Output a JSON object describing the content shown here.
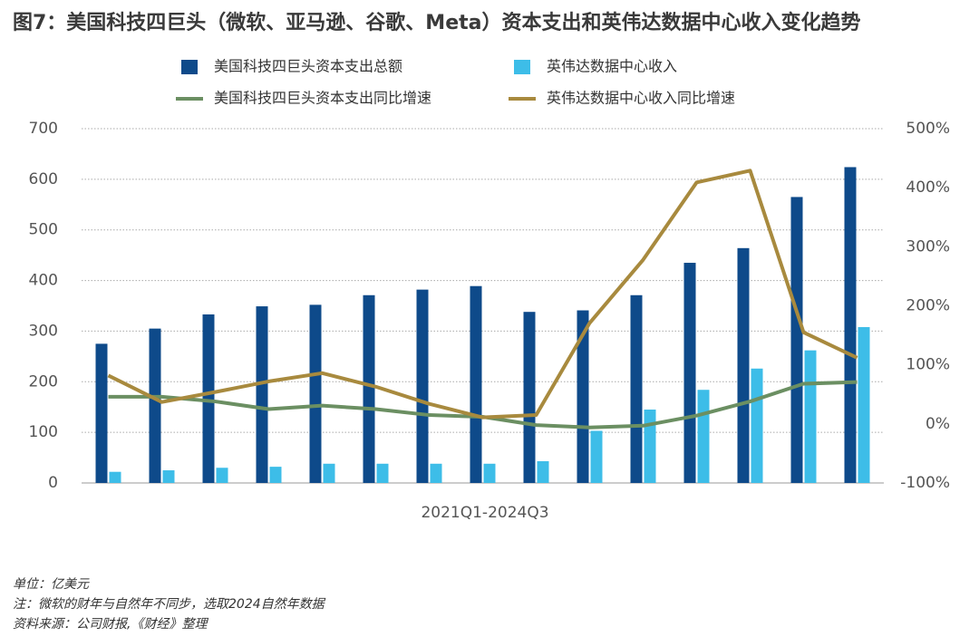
{
  "chart_data": {
    "type": "bar-line",
    "title": "图7：美国科技四巨头（微软、亚马逊、谷歌、Meta）资本支出和英伟达数据中心收入变化趋势",
    "x_label": "2021Q1-2024Q3",
    "categories": [
      null,
      null,
      null,
      null,
      null,
      null,
      null,
      null,
      null,
      null,
      null,
      null,
      null,
      null,
      null
    ],
    "series": [
      {
        "name": "美国科技四巨头资本支出总额",
        "kind": "bar",
        "color": "#0e4a8a",
        "values": [
          275,
          305,
          333,
          349,
          352,
          371,
          382,
          389,
          338,
          341,
          371,
          435,
          464,
          565,
          624
        ]
      },
      {
        "name": "英伟达数据中心收入",
        "kind": "bar",
        "color": "#3dbde8",
        "values": [
          22,
          25,
          30,
          32,
          38,
          38,
          38,
          38,
          43,
          103,
          145,
          184,
          226,
          262,
          308
        ]
      },
      {
        "name": "美国科技四巨头资本支出同比增速",
        "kind": "line",
        "axis": "y2",
        "color": "#6b8f62",
        "values": [
          46,
          46,
          38,
          25,
          31,
          25,
          15,
          12,
          -2,
          -6,
          -3,
          14,
          38,
          68,
          71
        ]
      },
      {
        "name": "英伟达数据中心收入同比增速",
        "kind": "line",
        "axis": "y2",
        "color": "#a88a3e",
        "values": [
          82,
          37,
          54,
          72,
          86,
          63,
          34,
          11,
          15,
          171,
          278,
          409,
          429,
          155,
          112
        ]
      }
    ],
    "ylim": [
      0,
      700
    ],
    "yticks": [
      0,
      100,
      200,
      300,
      400,
      500,
      600,
      700
    ],
    "y2lim": [
      -100,
      500
    ],
    "y2ticks": [
      {
        "value": -100,
        "label": "-100%"
      },
      {
        "value": 0,
        "label": "0%"
      },
      {
        "value": 100,
        "label": "100%"
      },
      {
        "value": 200,
        "label": "200%"
      },
      {
        "value": 300,
        "label": "300%"
      },
      {
        "value": 400,
        "label": "400%"
      },
      {
        "value": 500,
        "label": "500%"
      }
    ],
    "grid": true,
    "notes": [
      "单位：亿美元",
      "注：微软的财年与自然年不同步，选取2024自然年数据",
      "资料来源：公司财报,《财经》整理"
    ]
  }
}
